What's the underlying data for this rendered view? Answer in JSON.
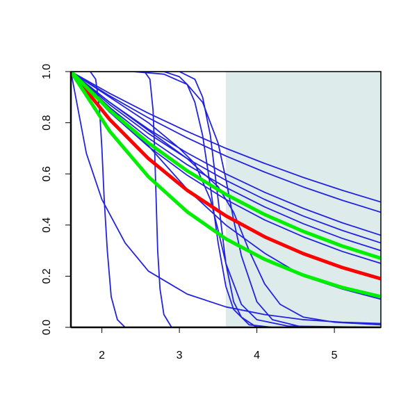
{
  "chart_data": {
    "type": "line",
    "xlim": [
      1.6,
      5.6
    ],
    "ylim": [
      0,
      1
    ],
    "xticks": [
      2,
      3,
      4,
      5
    ],
    "yticks": [
      {
        "value": 0,
        "label": "0.0"
      },
      0.2,
      0.4,
      0.6,
      0.8,
      {
        "value": 1,
        "label": "1.0"
      }
    ],
    "shaded_region": {
      "x": [
        3.6,
        5.6
      ],
      "color": "#deebeb"
    },
    "series": [
      {
        "color": "#2222dd",
        "x": [
          1.6,
          1.85,
          1.92,
          1.97,
          2.0,
          2.03,
          2.07,
          2.12,
          2.2,
          2.3,
          5.6
        ],
        "values": [
          1,
          1,
          0.97,
          0.85,
          0.7,
          0.5,
          0.3,
          0.12,
          0.03,
          0,
          0
        ]
      },
      {
        "color": "#2222dd",
        "x": [
          1.6,
          2.55,
          2.62,
          2.66,
          2.68,
          2.7,
          2.72,
          2.75,
          2.8,
          2.9,
          5.6
        ],
        "values": [
          1,
          1,
          0.97,
          0.85,
          0.7,
          0.5,
          0.3,
          0.15,
          0.05,
          0,
          0
        ]
      },
      {
        "color": "#2222dd",
        "x": [
          1.6,
          2.8,
          3.0,
          3.1,
          3.2,
          3.3,
          3.4,
          3.5,
          3.6,
          3.7,
          3.9,
          4.2,
          5.6
        ],
        "values": [
          1,
          1,
          0.98,
          0.95,
          0.88,
          0.75,
          0.55,
          0.33,
          0.16,
          0.07,
          0.01,
          0,
          0
        ]
      },
      {
        "color": "#2222dd",
        "x": [
          1.6,
          3.0,
          3.2,
          3.3,
          3.4,
          3.5,
          3.6,
          3.7,
          3.8,
          4.0,
          5.6
        ],
        "values": [
          1,
          1,
          0.97,
          0.9,
          0.75,
          0.5,
          0.25,
          0.1,
          0.04,
          0,
          0
        ]
      },
      {
        "color": "#2222dd",
        "x": [
          1.6,
          2.4,
          2.8,
          3.1,
          3.3,
          3.5,
          3.6,
          3.7,
          3.8,
          4.0,
          4.2,
          4.6,
          5.6
        ],
        "values": [
          1,
          1,
          0.99,
          0.95,
          0.88,
          0.72,
          0.58,
          0.42,
          0.28,
          0.1,
          0.03,
          0,
          0
        ]
      },
      {
        "color": "#2222dd",
        "x": [
          1.6,
          2.1,
          2.6,
          3.0,
          3.2,
          3.4,
          3.5,
          3.6,
          3.8,
          4.0,
          4.4,
          5.6
        ],
        "values": [
          1,
          0.9,
          0.8,
          0.7,
          0.64,
          0.5,
          0.38,
          0.25,
          0.09,
          0.03,
          0.005,
          0
        ]
      },
      {
        "color": "#2222dd",
        "x": [
          1.6,
          2.1,
          2.6,
          3.1,
          3.5,
          3.7,
          3.9,
          4.1,
          4.3,
          4.6,
          5.0,
          5.6
        ],
        "values": [
          1,
          0.88,
          0.77,
          0.66,
          0.55,
          0.45,
          0.3,
          0.17,
          0.09,
          0.04,
          0.02,
          0.01
        ]
      },
      {
        "color": "#2222dd",
        "x": [
          1.6,
          1.8,
          2.0,
          2.3,
          2.6,
          3.1,
          3.6,
          4.1,
          4.6,
          5.1,
          5.6
        ],
        "values": [
          1,
          0.68,
          0.5,
          0.33,
          0.22,
          0.13,
          0.08,
          0.05,
          0.03,
          0.02,
          0.015
        ]
      },
      {
        "color": "#2222dd",
        "x": [
          1.6,
          2.1,
          2.6,
          3.1,
          3.6,
          4.1,
          4.6,
          5.1,
          5.6
        ],
        "values": [
          1,
          0.86,
          0.71,
          0.54,
          0.4,
          0.29,
          0.2,
          0.15,
          0.11
        ]
      },
      {
        "color": "#2222dd",
        "x": [
          1.6,
          2.1,
          2.6,
          3.1,
          3.6,
          4.1,
          4.6,
          5.1,
          5.6
        ],
        "values": [
          1,
          0.915,
          0.837,
          0.766,
          0.7,
          0.641,
          0.586,
          0.536,
          0.49
        ]
      },
      {
        "color": "#2222dd",
        "x": [
          1.6,
          2.1,
          2.6,
          3.1,
          3.6,
          4.1,
          4.6,
          5.1,
          5.6
        ],
        "values": [
          1,
          0.905,
          0.819,
          0.741,
          0.67,
          0.607,
          0.549,
          0.497,
          0.45
        ]
      },
      {
        "color": "#2222dd",
        "x": [
          1.6,
          2.1,
          2.6,
          3.1,
          3.6,
          4.1,
          4.6,
          5.1,
          5.6
        ],
        "values": [
          1,
          0.88,
          0.775,
          0.682,
          0.6,
          0.528,
          0.465,
          0.409,
          0.36
        ]
      },
      {
        "color": "#2222dd",
        "x": [
          1.6,
          2.1,
          2.6,
          3.1,
          3.6,
          4.1,
          4.6,
          5.1,
          5.6
        ],
        "values": [
          1,
          0.871,
          0.758,
          0.66,
          0.575,
          0.5,
          0.435,
          0.379,
          0.33
        ]
      },
      {
        "color": "#2222dd",
        "x": [
          1.6,
          2.1,
          2.6,
          3.1,
          3.6,
          4.1,
          4.6,
          5.1,
          5.6
        ],
        "values": [
          1,
          0.86,
          0.74,
          0.636,
          0.547,
          0.471,
          0.405,
          0.348,
          0.3
        ]
      },
      {
        "color": "#2222dd",
        "x": [
          1.6,
          2.1,
          2.6,
          3.1,
          3.6,
          4.1,
          4.6,
          5.1,
          5.6
        ],
        "values": [
          1,
          0.841,
          0.707,
          0.595,
          0.5,
          0.42,
          0.354,
          0.297,
          0.25
        ]
      },
      {
        "color": "#ff0000",
        "x": [
          1.6,
          2.1,
          2.6,
          3.1,
          3.6,
          4.1,
          4.6,
          5.1,
          5.6
        ],
        "values": [
          1,
          0.813,
          0.66,
          0.536,
          0.436,
          0.354,
          0.288,
          0.234,
          0.19
        ]
      },
      {
        "color": "#00ee00",
        "x": [
          1.6,
          2.1,
          2.6,
          3.1,
          3.6,
          4.1,
          4.6,
          5.1,
          5.6
        ],
        "values": [
          1,
          0.849,
          0.721,
          0.612,
          0.52,
          0.441,
          0.375,
          0.318,
          0.27
        ]
      },
      {
        "color": "#00ee00",
        "x": [
          1.6,
          2.1,
          2.6,
          3.1,
          3.6,
          4.1,
          4.6,
          5.1,
          5.6
        ],
        "values": [
          1,
          0.767,
          0.589,
          0.452,
          0.346,
          0.266,
          0.204,
          0.156,
          0.12
        ]
      }
    ]
  }
}
